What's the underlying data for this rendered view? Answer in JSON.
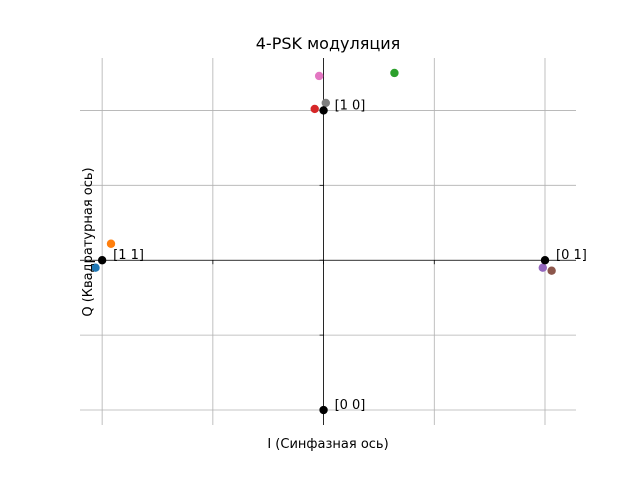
{
  "chart_data": {
    "type": "scatter",
    "title": "4-PSK модуляция",
    "xlabel": "I (Синфазная ось)",
    "ylabel": "Q (Квадратурная ось)",
    "xlim": [
      -1.1,
      1.14
    ],
    "ylim": [
      -1.1,
      1.35
    ],
    "xticks": [
      -1.0,
      -0.5,
      0.0,
      0.5,
      1.0
    ],
    "yticks": [
      -1.0,
      -0.5,
      0.0,
      0.5,
      1.0
    ],
    "grid": true,
    "constellation": [
      {
        "label": "[1 0]",
        "x": 0.0,
        "y": 1.0
      },
      {
        "label": "[1 1]",
        "x": -1.0,
        "y": 0.0
      },
      {
        "label": "[0 1]",
        "x": 1.0,
        "y": 0.0
      },
      {
        "label": "[0 0]",
        "x": 0.0,
        "y": -1.0
      }
    ],
    "received": [
      {
        "x": -1.03,
        "y": -0.05,
        "color": "#1f77b4"
      },
      {
        "x": -0.96,
        "y": 0.11,
        "color": "#ff7f0e"
      },
      {
        "x": 0.32,
        "y": 1.25,
        "color": "#2ca02c"
      },
      {
        "x": -0.04,
        "y": 1.01,
        "color": "#d62728"
      },
      {
        "x": 0.99,
        "y": -0.05,
        "color": "#9467bd"
      },
      {
        "x": 1.03,
        "y": -0.07,
        "color": "#8c564b"
      },
      {
        "x": -0.02,
        "y": 1.23,
        "color": "#e377c2"
      },
      {
        "x": 0.01,
        "y": 1.05,
        "color": "#7f7f7f"
      }
    ],
    "constellation_color": "#000000"
  }
}
